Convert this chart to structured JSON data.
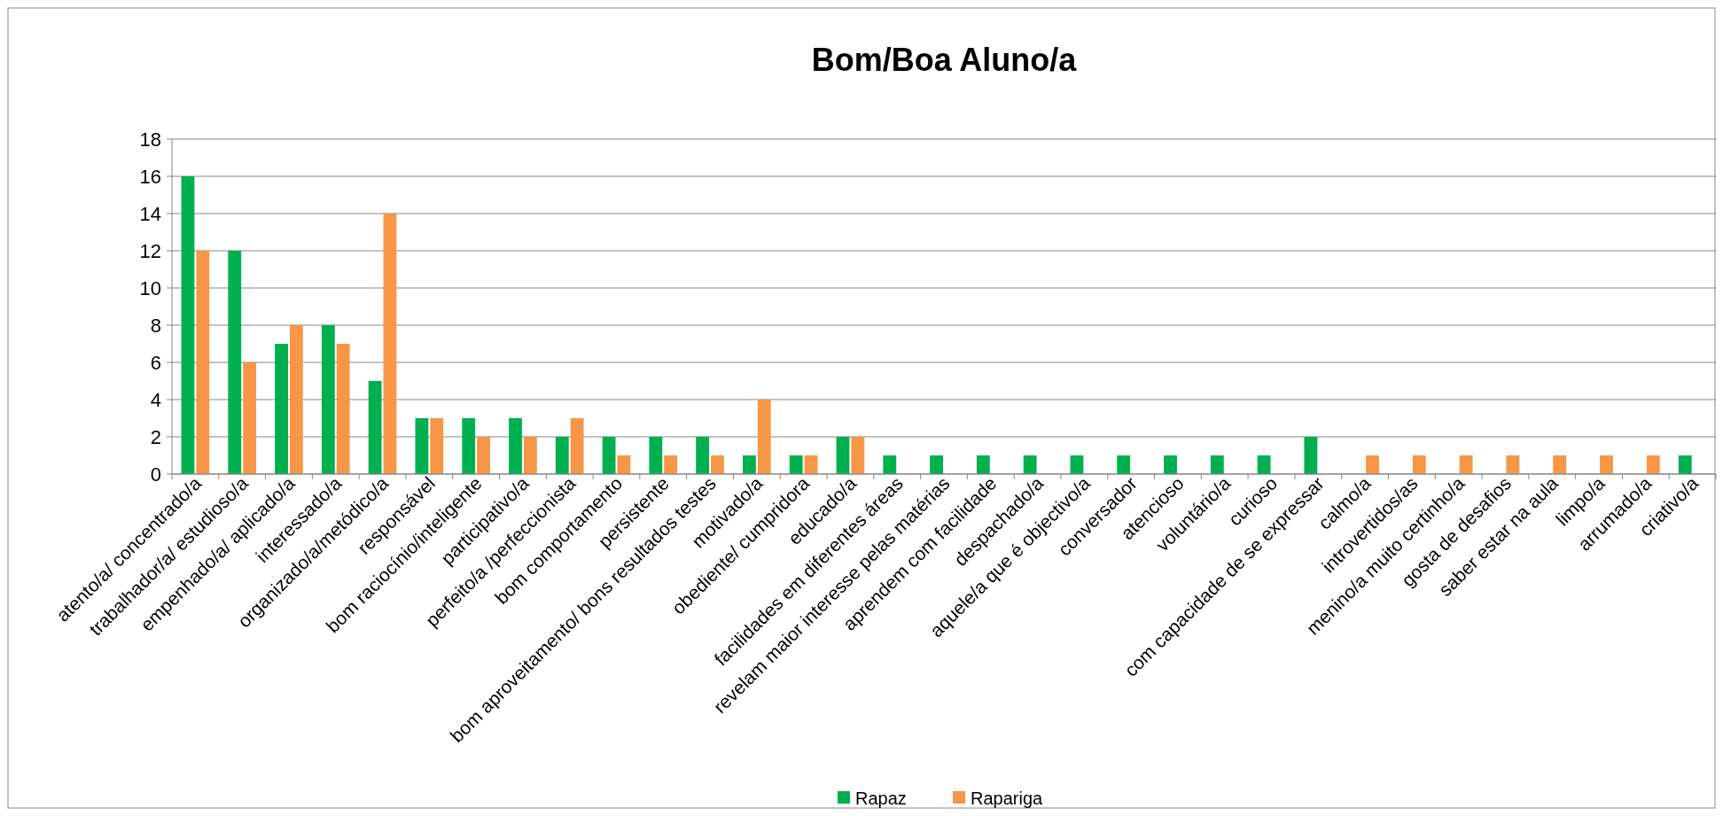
{
  "chart_data": {
    "type": "bar",
    "title": "Bom/Boa Aluno/a",
    "categories": [
      "atento/a/ concentrado/a",
      "trabalhador/a/ estudioso/a",
      "empenhado/a/ aplicado/a",
      "interessado/a",
      "organizado/a/metódico/a",
      "responsável",
      "bom raciocínio/inteligente",
      "participativo/a",
      "perfeito/a /perfeccionista",
      "bom comportamento",
      "persistente",
      "bom aproveitamento/ bons resultados testes",
      "motivado/a",
      "obediente/ cumpridora",
      "educado/a",
      "facilidades em diferentes áreas",
      "revelam maior interesse pelas matérias",
      "aprendem com facilidade",
      "despachado/a",
      "aquele/a que é objectivo/a",
      "conversador",
      "atencioso",
      "voluntário/a",
      "curioso",
      "com capacidade de se expressar",
      "calmo/a",
      "introvertidos/as",
      "menino/a muito certinho/a",
      "gosta de desafios",
      "saber estar na aula",
      "limpo/a",
      "arrumado/a",
      "criativo/a"
    ],
    "series": [
      {
        "name": "Rapaz",
        "color": "#00b050",
        "values": [
          16,
          12,
          7,
          8,
          5,
          3,
          3,
          3,
          2,
          2,
          2,
          2,
          1,
          1,
          2,
          1,
          1,
          1,
          1,
          1,
          1,
          1,
          1,
          1,
          2,
          0,
          0,
          0,
          0,
          0,
          0,
          0,
          1
        ]
      },
      {
        "name": "Rapariga",
        "color": "#f79646",
        "values": [
          12,
          6,
          8,
          7,
          14,
          3,
          2,
          2,
          3,
          1,
          1,
          1,
          4,
          1,
          2,
          0,
          0,
          0,
          0,
          0,
          0,
          0,
          0,
          0,
          0,
          1,
          1,
          1,
          1,
          1,
          1,
          1,
          0
        ]
      }
    ],
    "ylim": [
      0,
      18
    ],
    "yticks": [
      0,
      2,
      4,
      6,
      8,
      10,
      12,
      14,
      16,
      18
    ],
    "grid": "y",
    "legend": "bottom"
  }
}
